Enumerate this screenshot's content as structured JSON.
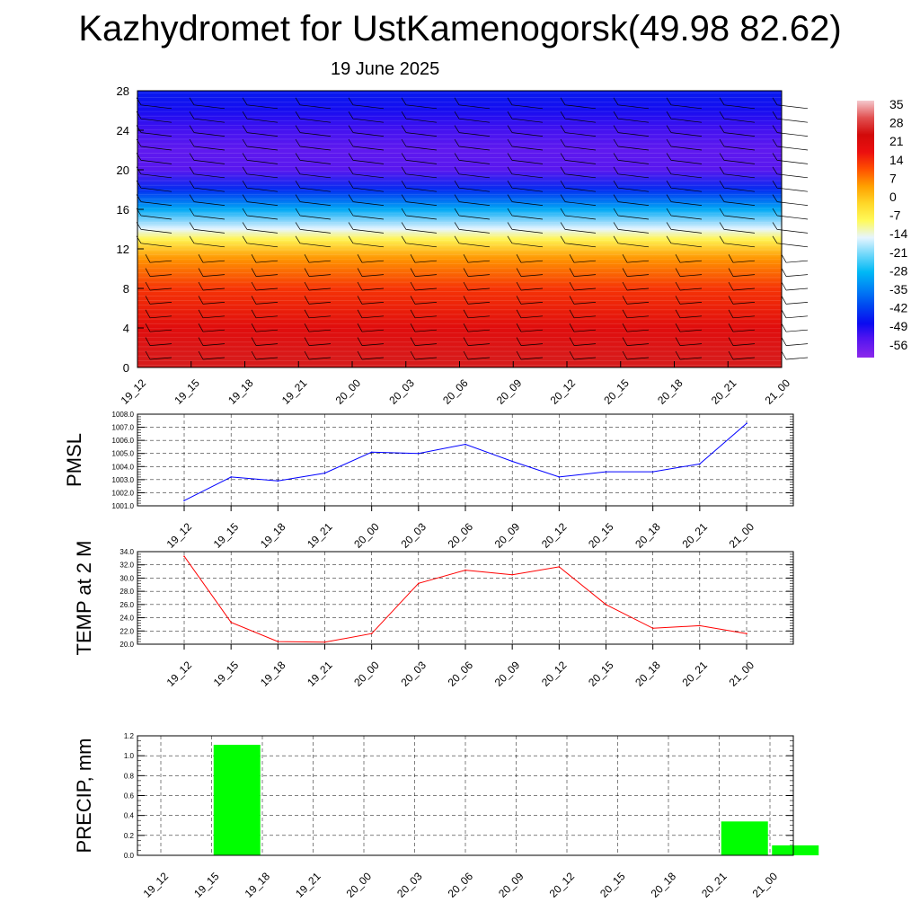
{
  "title": "Kazhydromet for UstKamenogorsk(49.98 82.62)",
  "subtitle": "19 June 2025",
  "colors": {
    "pressure_line": "#0000ff",
    "temperature_line": "#ff0000",
    "precip_bar": "#00ff00",
    "grid": "#000000"
  },
  "chart_data": [
    {
      "type": "heatmap",
      "name": "upper-air cross-section",
      "x": [
        "19_12",
        "19_15",
        "19_18",
        "19_21",
        "20_00",
        "20_03",
        "20_06",
        "20_09",
        "20_12",
        "20_15",
        "20_18",
        "20_21",
        "21_00"
      ],
      "y_ticks": [
        0,
        4,
        8,
        12,
        16,
        20,
        24,
        28
      ],
      "ylim": [
        0,
        28
      ],
      "profile": [
        {
          "y": 0,
          "value": 30
        },
        {
          "y": 4,
          "value": 24
        },
        {
          "y": 8,
          "value": 17
        },
        {
          "y": 11,
          "value": 8
        },
        {
          "y": 13,
          "value": -6
        },
        {
          "y": 14,
          "value": -14
        },
        {
          "y": 16,
          "value": -30
        },
        {
          "y": 18,
          "value": -45
        },
        {
          "y": 20,
          "value": -56
        },
        {
          "y": 22,
          "value": -57
        },
        {
          "y": 24,
          "value": -54
        },
        {
          "y": 26,
          "value": -50
        },
        {
          "y": 28,
          "value": -47
        }
      ],
      "colorbar": {
        "labels": [
          "35",
          "28",
          "21",
          "14",
          "7",
          "0",
          "-7",
          "-14",
          "-21",
          "-28",
          "-35",
          "-42",
          "-49",
          "-56"
        ],
        "min": -63,
        "max": 42
      },
      "overlay": "wind barbs"
    },
    {
      "type": "line",
      "ylabel": "PMSL",
      "x": [
        "19_12",
        "19_15",
        "19_18",
        "19_21",
        "20_00",
        "20_03",
        "20_06",
        "20_09",
        "20_12",
        "20_15",
        "20_18",
        "20_21",
        "21_00"
      ],
      "values": [
        1001.4,
        1003.2,
        1002.9,
        1003.5,
        1005.1,
        1005.0,
        1005.7,
        1004.4,
        1003.2,
        1003.6,
        1003.6,
        1004.2,
        1007.3
      ],
      "ylim": [
        1001.0,
        1008.0
      ],
      "y_ticks": [
        "1001.0",
        "1002.0",
        "1003.0",
        "1004.0",
        "1005.0",
        "1006.0",
        "1007.0",
        "1008.0"
      ],
      "grid": true
    },
    {
      "type": "line",
      "ylabel": "TEMP at 2 M",
      "x": [
        "19_12",
        "19_15",
        "19_18",
        "19_21",
        "20_00",
        "20_03",
        "20_06",
        "20_09",
        "20_12",
        "20_15",
        "20_18",
        "20_21",
        "21_00"
      ],
      "values": [
        33.3,
        23.3,
        20.4,
        20.3,
        21.6,
        29.2,
        31.2,
        30.5,
        31.7,
        26.0,
        22.4,
        22.8,
        21.6
      ],
      "ylim": [
        20.0,
        34.0
      ],
      "y_ticks": [
        "20.0",
        "22.0",
        "24.0",
        "26.0",
        "28.0",
        "30.0",
        "32.0",
        "34.0"
      ],
      "grid": true
    },
    {
      "type": "bar",
      "ylabel": "PRECIP, mm",
      "categories": [
        "19_12",
        "19_15",
        "19_18",
        "19_21",
        "20_00",
        "20_03",
        "20_06",
        "20_09",
        "20_12",
        "20_15",
        "20_18",
        "20_21",
        "21_00"
      ],
      "values": [
        0,
        1.11,
        0,
        0,
        0,
        0,
        0,
        0,
        0,
        0,
        0,
        0.34,
        0.1
      ],
      "ylim": [
        0.0,
        1.2
      ],
      "y_ticks": [
        "0.0",
        "0.2",
        "0.4",
        "0.6",
        "0.8",
        "1.0",
        "1.2"
      ],
      "grid": true
    }
  ]
}
